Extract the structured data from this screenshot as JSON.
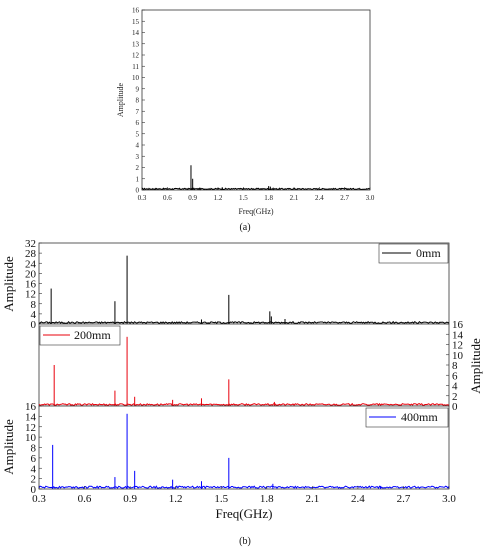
{
  "chart_data": [
    {
      "type": "line",
      "caption": "(a)",
      "xlabel": "Freq(GHz)",
      "ylabel": "Amplitude",
      "xlim": [
        0.3,
        3.0
      ],
      "ylim": [
        0,
        16
      ],
      "xticks": [
        0.3,
        0.6,
        0.9,
        1.2,
        1.5,
        1.8,
        2.1,
        2.4,
        2.7,
        3.0
      ],
      "xtick_labels": [
        "0.3",
        "0.6",
        "0.9",
        "1.2",
        "1.5",
        "1.8",
        "2.1",
        "2.4",
        "2.7",
        "3.0"
      ],
      "yticks": [
        0,
        1,
        2,
        3,
        4,
        5,
        6,
        7,
        8,
        9,
        10,
        11,
        12,
        13,
        14,
        15,
        16
      ],
      "ytick_labels": [
        "0",
        "1",
        "2",
        "3",
        "4",
        "5",
        "6",
        "7",
        "8",
        "9",
        "10",
        "11",
        "12",
        "13",
        "14",
        "15",
        "16"
      ],
      "series": [
        {
          "color": "#000000",
          "noise": 0.15,
          "peaks": [
            [
              0.88,
              2.2
            ],
            [
              0.9,
              1.0
            ],
            [
              1.8,
              0.35
            ],
            [
              1.82,
              0.3
            ],
            [
              1.25,
              0.25
            ]
          ]
        }
      ]
    },
    {
      "type": "line",
      "caption": "(b)",
      "xlabel": "Freq(GHz)",
      "xlim": [
        0.3,
        3.0
      ],
      "xticks": [
        0.3,
        0.6,
        0.9,
        1.2,
        1.5,
        1.8,
        2.1,
        2.4,
        2.7,
        3.0
      ],
      "xtick_labels": [
        "0.3",
        "0.6",
        "0.9",
        "1.2",
        "1.5",
        "1.8",
        "2.1",
        "2.4",
        "2.7",
        "3.0"
      ],
      "panels": [
        {
          "legend": "0mm",
          "color": "#000000",
          "ylabel": "Amplitude",
          "ylabel_side": "left",
          "ylim": [
            0,
            32
          ],
          "yticks": [
            0,
            4,
            8,
            12,
            16,
            20,
            24,
            28,
            32
          ],
          "ytick_labels": [
            "0",
            "4",
            "8",
            "12",
            "16",
            "20",
            "24",
            "28",
            "32"
          ],
          "noise": 0.9,
          "peaks": [
            [
              0.38,
              14
            ],
            [
              0.8,
              9
            ],
            [
              0.88,
              27
            ],
            [
              1.55,
              11.5
            ],
            [
              1.82,
              5
            ],
            [
              1.83,
              3
            ],
            [
              1.92,
              2
            ],
            [
              1.37,
              1.8
            ]
          ]
        },
        {
          "legend": "200mm",
          "color": "#e8000b",
          "ylabel": "Amplitude",
          "ylabel_side": "right",
          "ylim": [
            0,
            16
          ],
          "yticks": [
            0,
            2,
            4,
            6,
            8,
            10,
            12,
            14,
            16
          ],
          "ytick_labels": [
            "0",
            "2",
            "4",
            "6",
            "8",
            "10",
            "12",
            "14",
            "16"
          ],
          "noise": 0.45,
          "peaks": [
            [
              0.4,
              8
            ],
            [
              0.8,
              3
            ],
            [
              0.88,
              13.5
            ],
            [
              0.93,
              1.8
            ],
            [
              1.18,
              1.2
            ],
            [
              1.37,
              1.5
            ],
            [
              1.55,
              5.2
            ],
            [
              1.85,
              0.8
            ]
          ]
        },
        {
          "legend": "400mm",
          "color": "#0000ff",
          "ylabel": "Amplitude",
          "ylabel_side": "left",
          "ylim": [
            0,
            16
          ],
          "yticks": [
            0,
            2,
            4,
            6,
            8,
            10,
            12,
            14,
            16
          ],
          "ytick_labels": [
            "0",
            "2",
            "4",
            "6",
            "8",
            "10",
            "12",
            "14",
            "16"
          ],
          "noise": 0.55,
          "peaks": [
            [
              0.39,
              8.5
            ],
            [
              0.8,
              2.3
            ],
            [
              0.88,
              14.5
            ],
            [
              0.93,
              3.5
            ],
            [
              1.18,
              1.8
            ],
            [
              1.37,
              1.5
            ],
            [
              1.55,
              6
            ],
            [
              1.84,
              1.0
            ],
            [
              2.55,
              0.6
            ]
          ]
        }
      ]
    }
  ]
}
